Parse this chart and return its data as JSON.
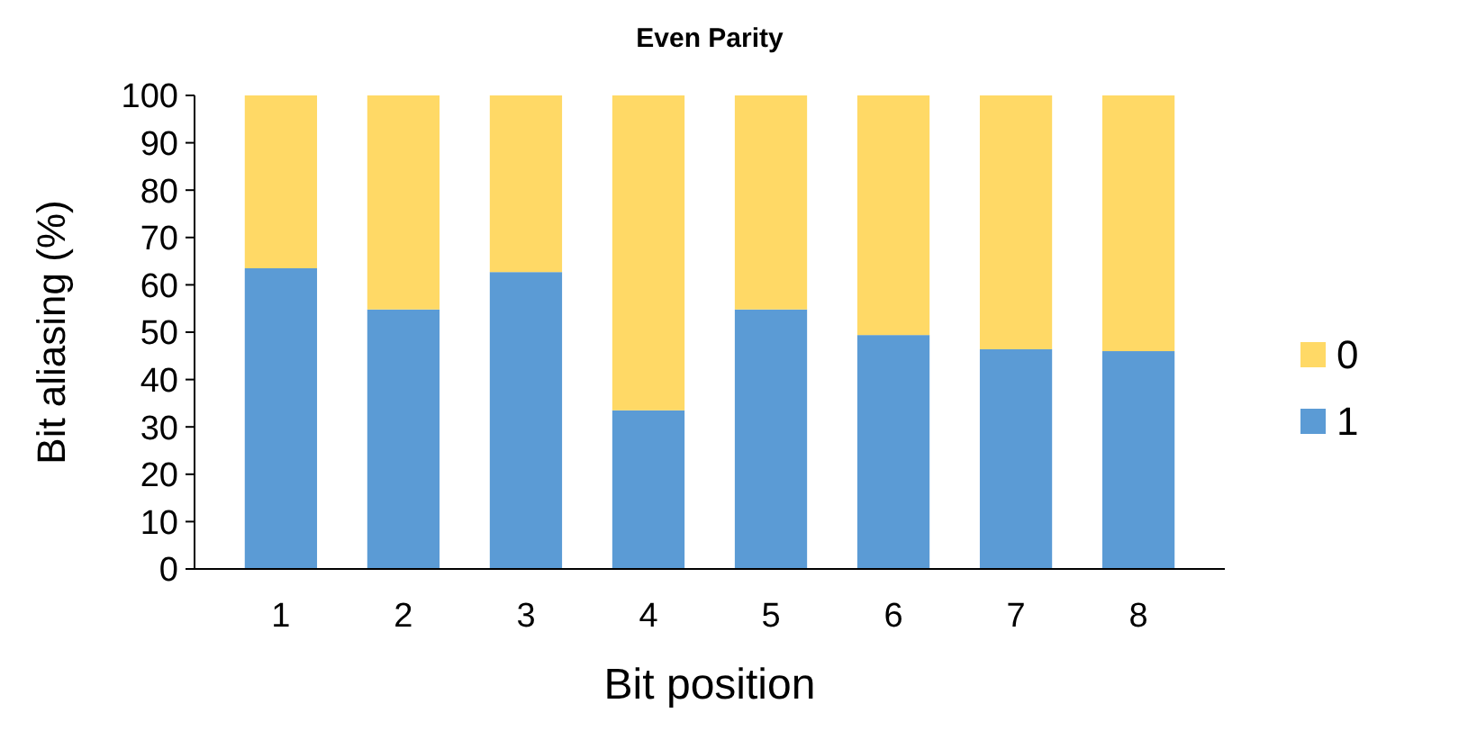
{
  "chart_data": {
    "type": "bar",
    "title": "Even Parity",
    "xlabel": "Bit position",
    "ylabel": "Bit aliasing (%)",
    "categories": [
      "1",
      "2",
      "3",
      "4",
      "5",
      "6",
      "7",
      "8"
    ],
    "stacked": true,
    "ylim": [
      0,
      100
    ],
    "yticks": [
      0,
      10,
      20,
      30,
      40,
      50,
      60,
      70,
      80,
      90,
      100
    ],
    "legend": "right",
    "grid": false,
    "series": [
      {
        "name": "1",
        "color": "#5b9bd5",
        "values": [
          63.5,
          54.8,
          62.7,
          33.5,
          54.8,
          49.4,
          46.4,
          46.0
        ]
      },
      {
        "name": "0",
        "color": "#ffd966",
        "values": [
          36.5,
          45.2,
          37.3,
          66.5,
          45.2,
          50.6,
          53.6,
          54.0
        ]
      }
    ]
  }
}
